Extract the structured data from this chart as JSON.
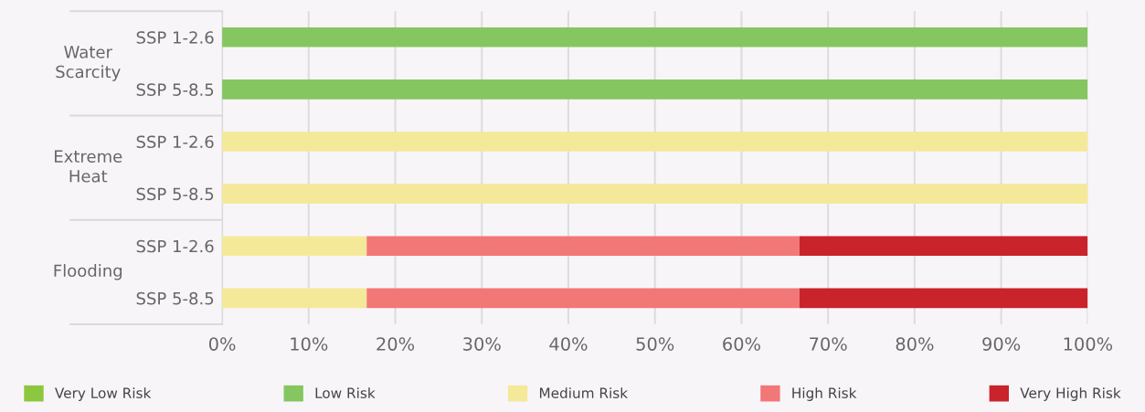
{
  "chart_data": {
    "type": "bar",
    "orientation": "horizontal",
    "stacked": true,
    "categories": [
      "SSP 1-2.6",
      "SSP 5-8.5",
      "SSP 1-2.6",
      "SSP 5-8.5",
      "SSP 1-2.6",
      "SSP 5-8.5"
    ],
    "annotations": [
      "Water\nScarcity",
      "Extreme\nHeat",
      "Flooding"
    ],
    "series": [
      {
        "name": "Very Low Risk",
        "color": "#8dc63f",
        "values": [
          null,
          null,
          null,
          null,
          null,
          null
        ]
      },
      {
        "name": "Low Risk",
        "color": "#86c661",
        "values": [
          100,
          100,
          null,
          null,
          null,
          null
        ]
      },
      {
        "name": "Medium Risk",
        "color": "#f4e999",
        "values": [
          null,
          null,
          100,
          100,
          16.7,
          16.7
        ]
      },
      {
        "name": "High Risk",
        "color": "#f27777",
        "values": [
          null,
          null,
          null,
          null,
          50,
          50
        ]
      },
      {
        "name": "Very High Risk",
        "color": "#c9232b",
        "values": [
          null,
          null,
          null,
          null,
          33.3,
          33.3
        ]
      }
    ],
    "xlim": [
      0,
      100
    ],
    "xticks": [
      {
        "value": 0,
        "label": "0%"
      },
      {
        "value": 10,
        "label": "10%"
      },
      {
        "value": 20,
        "label": "20%"
      },
      {
        "value": 30,
        "label": "30%"
      },
      {
        "value": 40,
        "label": "40%"
      },
      {
        "value": 50,
        "label": "50%"
      },
      {
        "value": 60,
        "label": "60%"
      },
      {
        "value": 70,
        "label": "70%"
      },
      {
        "value": 80,
        "label": "80%"
      },
      {
        "value": 90,
        "label": "90%"
      },
      {
        "value": 100,
        "label": "100%"
      }
    ],
    "grid": "x",
    "legend": "bottom"
  }
}
